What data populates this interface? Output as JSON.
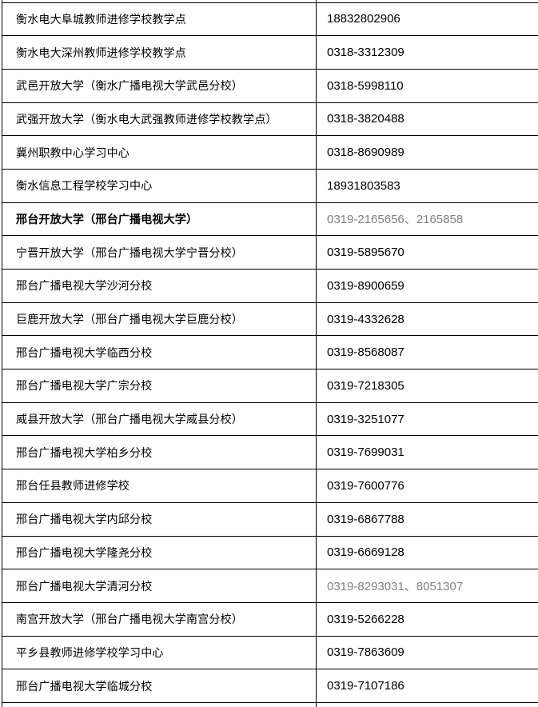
{
  "table": {
    "description": "school-contact-phone-table",
    "text_color": "#000000",
    "muted_color": "#808080",
    "border_color": "#000000",
    "columns": [
      "school-name",
      "phone-number"
    ],
    "rows": [
      {
        "name": "衡水电大阜城教师进修学校教学点",
        "phone": "18832802906",
        "bold": false,
        "muted": false
      },
      {
        "name": "衡水电大深州教师进修学校教学点",
        "phone": "0318-3312309",
        "bold": false,
        "muted": false
      },
      {
        "name": "武邑开放大学（衡水广播电视大学武邑分校）",
        "phone": "0318-5998110",
        "bold": false,
        "muted": false
      },
      {
        "name": "武强开放大学（衡水电大武强教师进修学校教学点）",
        "phone": "0318-3820488",
        "bold": false,
        "muted": false
      },
      {
        "name": "冀州职教中心学习中心",
        "phone": "0318-8690989",
        "bold": false,
        "muted": false
      },
      {
        "name": "衡水信息工程学校学习中心",
        "phone": "18931803583",
        "bold": false,
        "muted": false
      },
      {
        "name": "邢台开放大学（邢台广播电视大学）",
        "phone": "0319-2165656、2165858",
        "bold": true,
        "muted": true
      },
      {
        "name": "宁晋开放大学（邢台广播电视大学宁晋分校）",
        "phone": "0319-5895670",
        "bold": false,
        "muted": false
      },
      {
        "name": "邢台广播电视大学沙河分校",
        "phone": "0319-8900659",
        "bold": false,
        "muted": false
      },
      {
        "name": "巨鹿开放大学（邢台广播电视大学巨鹿分校）",
        "phone": "0319-4332628",
        "bold": false,
        "muted": false
      },
      {
        "name": "邢台广播电视大学临西分校",
        "phone": "0319-8568087",
        "bold": false,
        "muted": false
      },
      {
        "name": "邢台广播电视大学广宗分校",
        "phone": "0319-7218305",
        "bold": false,
        "muted": false
      },
      {
        "name": "威县开放大学（邢台广播电视大学威县分校）",
        "phone": "0319-3251077",
        "bold": false,
        "muted": false
      },
      {
        "name": "邢台广播电视大学柏乡分校",
        "phone": "0319-7699031",
        "bold": false,
        "muted": false
      },
      {
        "name": "邢台任县教师进修学校",
        "phone": "0319-7600776",
        "bold": false,
        "muted": false
      },
      {
        "name": "邢台广播电视大学内邱分校",
        "phone": "0319-6867788",
        "bold": false,
        "muted": false
      },
      {
        "name": "邢台广播电视大学隆尧分校",
        "phone": "0319-6669128",
        "bold": false,
        "muted": false
      },
      {
        "name": "邢台广播电视大学清河分校",
        "phone": "0319-8293031、8051307",
        "bold": false,
        "muted": true
      },
      {
        "name": "南宫开放大学（邢台广播电视大学南宫分校）",
        "phone": "0319-5266228",
        "bold": false,
        "muted": false
      },
      {
        "name": "平乡县教师进修学校学习中心",
        "phone": "0319-7863609",
        "bold": false,
        "muted": false
      },
      {
        "name": "邢台广播电视大学临城分校",
        "phone": "0319-7107186",
        "bold": false,
        "muted": false
      }
    ]
  }
}
